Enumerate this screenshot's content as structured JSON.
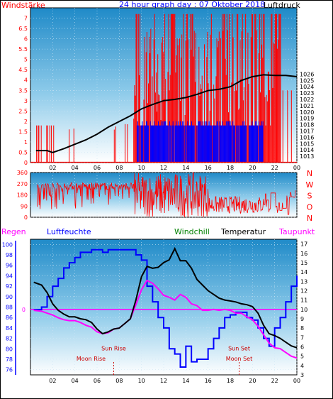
{
  "chart_data": [
    {
      "type": "line",
      "title": "24 hour graph day : 07 Oktober 2018",
      "left_axis_label": "Windstärke",
      "right_axis_label": "Luftdruck",
      "x_tick_labels": [
        "02",
        "04",
        "06",
        "08",
        "10",
        "12",
        "14",
        "16",
        "18",
        "20",
        "22",
        "00"
      ],
      "ylim_left": [
        0,
        7.5
      ],
      "left_ticks": [
        0,
        0.5,
        1,
        1.5,
        2,
        2.5,
        3,
        3.5,
        4,
        4.5,
        5,
        5.5,
        6,
        6.5,
        7
      ],
      "left_tick_labels": [
        "0",
        "0.5",
        "1",
        "1.5",
        "2",
        "2.5",
        "3",
        "3.5",
        "4",
        "4.5",
        "5",
        "5.5",
        "6",
        "6.5",
        "7"
      ],
      "ylim_right": [
        1012,
        1036.5
      ],
      "right_ticks": [
        1013,
        1014,
        1015,
        1016,
        1017,
        1018,
        1019,
        1020,
        1021,
        1022,
        1023,
        1024,
        1025,
        1026
      ],
      "right_tick_labels": [
        "1013",
        "1014",
        "1015",
        "1016",
        "1017",
        "1018",
        "1019",
        "1020",
        "1021",
        "1022",
        "1023",
        "1024",
        "1025",
        "1026"
      ],
      "grid": true,
      "series": [
        {
          "name": "Luftdruck",
          "axis": "right",
          "color": "#000000",
          "x": [
            0.5,
            1.5,
            2,
            3,
            4,
            5,
            6,
            7,
            8,
            9,
            10,
            11,
            12,
            13,
            14,
            15,
            16,
            17,
            18,
            19,
            20,
            21,
            22,
            23,
            24
          ],
          "values": [
            1013.9,
            1013.9,
            1013.6,
            1014.2,
            1014.9,
            1015.6,
            1016.5,
            1017.6,
            1018.5,
            1019.4,
            1020.5,
            1021.2,
            1021.8,
            1022.0,
            1022.3,
            1022.8,
            1023.4,
            1023.6,
            1024.0,
            1025.0,
            1025.6,
            1025.9,
            1025.8,
            1025.8,
            1025.6
          ]
        }
      ],
      "wind_bars_red": "gusts 0–7 Bft, mostly between 09:30 and 22:30",
      "wind_bars_blue": "mean wind 1.5–2 Bft between 09:30 and 21:00"
    },
    {
      "type": "line",
      "left_tick_labels": [
        "360",
        "270",
        "180",
        "90",
        "0"
      ],
      "right_tick_labels": [
        "N",
        "W",
        "S",
        "O",
        "N"
      ],
      "ylim": [
        0,
        360
      ],
      "series": [
        {
          "name": "wind direction",
          "color": "#ff0000"
        }
      ]
    },
    {
      "type": "line",
      "left_header": "Regen",
      "humidity_header": "Luftfeuchte",
      "windchill_header": "Windchill",
      "temperature_header": "Temperatur",
      "dewpoint_header": "Taupunkt",
      "x_tick_labels": [
        "02",
        "04",
        "06",
        "08",
        "10",
        "12",
        "14",
        "16",
        "18",
        "20",
        "22",
        "00"
      ],
      "ylim_left": [
        75,
        101
      ],
      "left_ticks": [
        76,
        78,
        80,
        82,
        84,
        86,
        88,
        90,
        92,
        94,
        96,
        98,
        100
      ],
      "left_tick_labels": [
        "76",
        "78",
        "80",
        "82",
        "84",
        "86",
        "88",
        "90",
        "92",
        "94",
        "96",
        "98",
        "100"
      ],
      "ylim_right": [
        3,
        17.5
      ],
      "right_ticks": [
        3,
        4,
        5,
        6,
        7,
        8,
        9,
        10,
        11,
        12,
        13,
        14,
        15,
        16,
        17
      ],
      "right_tick_labels": [
        "3",
        "4",
        "5",
        "6",
        "7",
        "8",
        "9",
        "10",
        "11",
        "12",
        "13",
        "14",
        "15",
        "16",
        "17"
      ],
      "rain_zero_label": "0",
      "rain_zero_value": 10,
      "annotations": [
        "Sun Rise",
        "Moon Rise",
        "Sun Set",
        "Moon Set"
      ],
      "sunrise_label": "Sun Rise",
      "sunrise_hour": 7.5,
      "moonrise_label": "Moon Rise",
      "moonrise_hour": 7.5,
      "sunset_label": "Sun Set",
      "sunset_hour": 18.8,
      "moonset_label": "Moon Set",
      "moonset_hour": 18.8,
      "series": [
        {
          "name": "Luftfeuchte",
          "axis": "left",
          "color": "#0000ff",
          "x": [
            0.3,
            1,
            1.5,
            2,
            2.5,
            3,
            3.5,
            4,
            4.5,
            5,
            5.5,
            6,
            6.5,
            7,
            8,
            9,
            9.5,
            10,
            10.5,
            11,
            11.5,
            12,
            12.5,
            13,
            13.5,
            14,
            14.5,
            15,
            15.5,
            16,
            16.5,
            17,
            17.5,
            18,
            18.5,
            19,
            19.5,
            20,
            20.5,
            21,
            21.5,
            22,
            22.5,
            23,
            23.5,
            24
          ],
          "values": [
            87.5,
            88,
            90,
            92,
            93.5,
            95.5,
            96.5,
            97.5,
            98.5,
            98.5,
            99,
            99,
            98.5,
            99,
            99,
            99,
            98,
            97,
            92,
            89,
            86,
            84,
            80,
            79,
            76.5,
            80.5,
            77.5,
            78,
            78,
            80,
            82,
            84,
            86,
            86.5,
            87,
            87,
            86,
            85.5,
            84,
            82,
            80.5,
            84,
            86,
            89,
            92,
            94
          ]
        },
        {
          "name": "Temperatur",
          "axis": "right",
          "color": "#000000",
          "x": [
            0.3,
            1,
            1.5,
            2,
            2.5,
            3,
            3.5,
            4,
            4.5,
            5,
            5.5,
            6,
            6.5,
            7,
            7.5,
            8,
            8.5,
            9,
            9.5,
            10,
            10.5,
            11,
            11.5,
            12,
            12.5,
            13,
            13.5,
            14,
            14.5,
            15,
            15.5,
            16,
            16.5,
            17,
            17.5,
            18,
            18.5,
            19,
            19.5,
            20,
            20.5,
            21,
            21.5,
            22,
            22.5,
            23,
            23.5,
            24
          ],
          "values": [
            12.9,
            12.6,
            11.8,
            10.6,
            9.9,
            9.5,
            9.2,
            9.2,
            9.0,
            8.9,
            8.6,
            7.9,
            7.4,
            7.6,
            7.9,
            8.0,
            8.5,
            9.0,
            11.0,
            13.5,
            14.6,
            14.4,
            14.5,
            15.0,
            15.3,
            16.5,
            15.2,
            15.2,
            14.4,
            13.2,
            12.6,
            12.0,
            11.6,
            11.2,
            11.0,
            10.9,
            10.8,
            10.6,
            10.5,
            10.3,
            9.6,
            8.3,
            7.4,
            7.2,
            6.9,
            6.5,
            6.1,
            5.9
          ]
        },
        {
          "name": "Taupunkt",
          "axis": "right",
          "color": "#ff00ff",
          "x": [
            0.3,
            1,
            1.5,
            2,
            2.5,
            3,
            3.5,
            4,
            4.5,
            5,
            5.5,
            6,
            6.5,
            7,
            7.5,
            8,
            8.5,
            9,
            9.5,
            10,
            10.5,
            11,
            11.5,
            12,
            12.5,
            13,
            13.5,
            14,
            14.5,
            15,
            15.5,
            16,
            16.5,
            17,
            17.5,
            18,
            18.5,
            19,
            19.5,
            20,
            20.5,
            21,
            21.5,
            22,
            22.5,
            23,
            23.5,
            24
          ],
          "values": [
            9.9,
            9.8,
            9.6,
            9.4,
            9.1,
            8.9,
            8.8,
            8.8,
            8.6,
            8.3,
            8.1,
            7.6,
            7.4,
            7.5,
            7.9,
            8.0,
            8.5,
            9.0,
            10.5,
            12.1,
            13.1,
            12.8,
            12.2,
            11.5,
            11.3,
            11.0,
            11.6,
            11.3,
            10.6,
            10.4,
            9.9,
            9.9,
            10.0,
            9.9,
            10.0,
            9.9,
            9.6,
            9.6,
            9.2,
            8.9,
            8.2,
            7.3,
            6.4,
            5.9,
            5.8,
            5.4,
            5.0,
            4.8
          ]
        }
      ]
    }
  ]
}
